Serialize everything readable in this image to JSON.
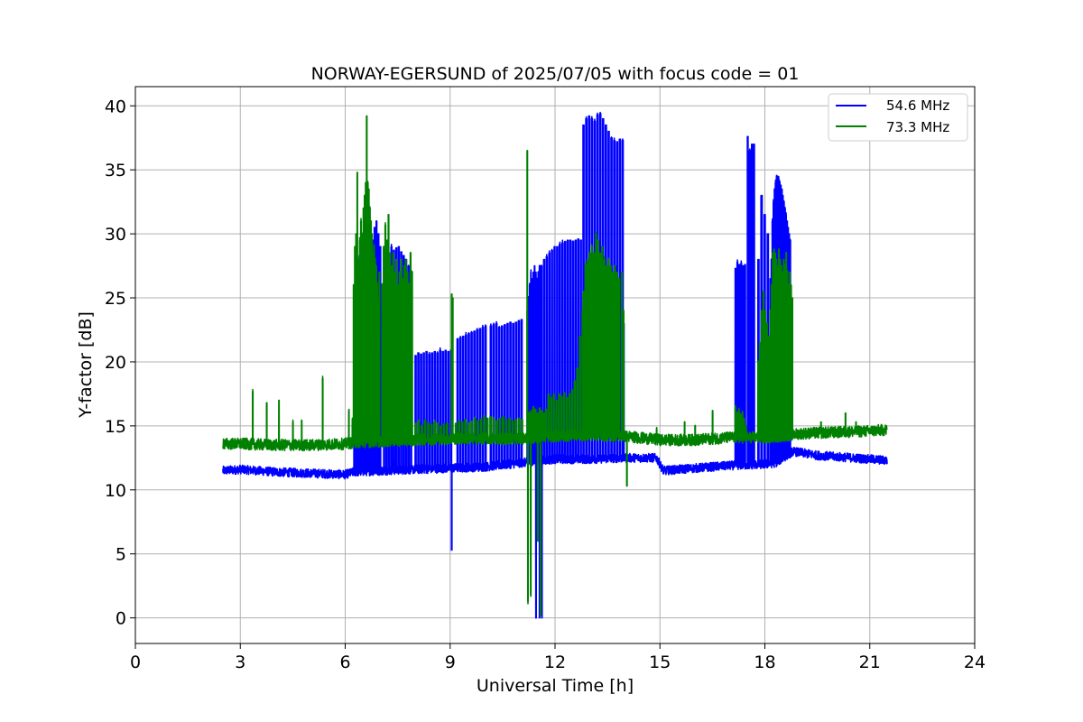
{
  "chart_data": {
    "type": "line",
    "title": "NORWAY-EGERSUND of 2025/07/05 with focus code = 01",
    "xlabel": "Universal Time [h]",
    "ylabel": "Y-factor [dB]",
    "xlim": [
      0,
      24
    ],
    "ylim": [
      -2,
      41.5
    ],
    "xticks": [
      0,
      3,
      6,
      9,
      12,
      15,
      18,
      21,
      24
    ],
    "yticks": [
      0,
      5,
      10,
      15,
      20,
      25,
      30,
      35,
      40
    ],
    "grid": true,
    "legend_position": "top-right",
    "series": [
      {
        "name": "54.6 MHz",
        "color": "#0000ff",
        "baseline": [
          [
            2.5,
            11.5
          ],
          [
            3.0,
            11.6
          ],
          [
            4.0,
            11.4
          ],
          [
            5.0,
            11.3
          ],
          [
            6.0,
            11.2
          ],
          [
            6.25,
            11.4
          ],
          [
            7.0,
            11.5
          ],
          [
            8.0,
            11.6
          ],
          [
            9.0,
            11.7
          ],
          [
            10.0,
            11.8
          ],
          [
            11.0,
            12.1
          ],
          [
            12.0,
            12.4
          ],
          [
            13.0,
            12.4
          ],
          [
            14.0,
            12.5
          ],
          [
            14.9,
            12.5
          ],
          [
            15.1,
            11.5
          ],
          [
            16.0,
            11.7
          ],
          [
            17.0,
            11.9
          ],
          [
            18.0,
            12.0
          ],
          [
            18.3,
            12.1
          ],
          [
            18.8,
            13.0
          ],
          [
            19.5,
            12.7
          ],
          [
            20.5,
            12.5
          ],
          [
            21.5,
            12.3
          ]
        ],
        "noise": 0.35,
        "spikes": [
          {
            "start": 6.25,
            "end": 6.5,
            "step": 0.05,
            "peaks": [
              21.5,
              28.0,
              27.0,
              28.3,
              27.5
            ]
          },
          {
            "start": 6.5,
            "end": 7.05,
            "step": 0.055,
            "peaks": [
              29.5,
              30.0,
              30.5,
              31.0,
              30.0,
              29.5,
              30.5,
              31.0,
              30.0,
              29.0
            ]
          },
          {
            "start": 7.1,
            "end": 7.95,
            "step": 0.07,
            "peaks": [
              28.8,
              29.0,
              28.5,
              29.0,
              28.7,
              28.9,
              29.0,
              28.6,
              28.3,
              28.0,
              27.5,
              27.0
            ]
          },
          {
            "start": 8.0,
            "end": 9.1,
            "step": 0.078,
            "peaks": [
              20.5,
              20.7,
              20.6,
              20.7,
              20.8,
              20.6,
              20.7,
              20.8,
              20.7,
              20.9,
              20.8,
              20.9,
              20.8,
              20.9
            ]
          },
          {
            "start": 9.2,
            "end": 10.1,
            "step": 0.08,
            "peaks": [
              21.8,
              21.9,
              22.0,
              22.1,
              22.2,
              22.3,
              22.4,
              22.5,
              22.6,
              22.7,
              22.8
            ]
          },
          {
            "start": 10.15,
            "end": 11.1,
            "step": 0.08,
            "peaks": [
              22.8,
              22.9,
              23.0,
              22.7,
              22.8,
              22.9,
              23.0,
              23.1,
              23.0,
              23.1,
              23.2,
              23.3
            ]
          },
          {
            "start": 11.2,
            "end": 11.6,
            "step": 0.035,
            "peaks": [
              24.0,
              25.0,
              26.0,
              27.0,
              26.5,
              27.0,
              27.5,
              27.0,
              26.5,
              27.0,
              27.5
            ]
          },
          {
            "start": 11.6,
            "end": 12.8,
            "step": 0.075,
            "peaks": [
              27.5,
              28.0,
              28.2,
              28.5,
              28.7,
              29.0,
              29.0,
              29.2,
              29.3,
              29.4,
              29.5,
              29.5,
              29.4,
              29.5,
              29.6,
              29.5
            ]
          },
          {
            "start": 12.8,
            "end": 13.95,
            "step": 0.08,
            "peaks": [
              38.5,
              39.0,
              39.2,
              39.0,
              38.8,
              39.3,
              39.4,
              39.0,
              38.5,
              38.0,
              37.5,
              37.3,
              37.2,
              37.4,
              37.3
            ]
          },
          {
            "start": 13.96,
            "end": 14.0,
            "step": 0.04,
            "peaks": [
              23.0
            ]
          },
          {
            "start": 17.15,
            "end": 17.5,
            "step": 0.055,
            "peaks": [
              27.3,
              27.8,
              27.6,
              27.7,
              27.5,
              27.6
            ]
          },
          {
            "start": 17.5,
            "end": 17.75,
            "step": 0.06,
            "peaks": [
              37.6,
              36.5,
              37.0,
              37.0
            ]
          },
          {
            "start": 17.8,
            "end": 18.15,
            "step": 0.09,
            "peaks": [
              28.0,
              33.0,
              31.5,
              30.0
            ]
          },
          {
            "start": 18.15,
            "end": 18.75,
            "step": 0.03,
            "peaks": [
              26.5,
              28.0,
              31.0,
              32.5,
              33.5,
              34.0,
              34.5,
              34.5,
              34.3,
              34.0,
              33.8,
              33.5,
              33.0,
              32.5,
              32.0,
              31.5,
              31.0,
              30.5,
              30.0,
              29.5
            ]
          }
        ],
        "dips": [
          {
            "x": 9.04,
            "y": 5.3
          },
          {
            "x": 11.45,
            "y": 0.0
          },
          {
            "x": 11.55,
            "y": 0.0
          },
          {
            "x": 11.62,
            "y": 0.0
          }
        ]
      },
      {
        "name": "73.3 MHz",
        "color": "#008000",
        "baseline": [
          [
            2.5,
            13.6
          ],
          [
            3.0,
            13.6
          ],
          [
            4.0,
            13.5
          ],
          [
            5.0,
            13.5
          ],
          [
            6.0,
            13.6
          ],
          [
            6.25,
            13.7
          ],
          [
            7.0,
            13.8
          ],
          [
            8.0,
            13.9
          ],
          [
            9.0,
            14.0
          ],
          [
            10.0,
            14.0
          ],
          [
            11.0,
            14.0
          ],
          [
            12.0,
            14.2
          ],
          [
            13.0,
            14.3
          ],
          [
            14.0,
            14.2
          ],
          [
            15.0,
            13.9
          ],
          [
            16.0,
            13.9
          ],
          [
            17.0,
            14.1
          ],
          [
            18.0,
            14.1
          ],
          [
            18.5,
            14.2
          ],
          [
            19.0,
            14.4
          ],
          [
            20.0,
            14.5
          ],
          [
            21.0,
            14.6
          ],
          [
            21.5,
            14.7
          ]
        ],
        "noise": 0.45,
        "spikes": [
          {
            "start": 6.2,
            "end": 6.55,
            "step": 0.035,
            "peaks": [
              15.5,
              26.0,
              29.0,
              30.0,
              34.8,
              28.0,
              29.5,
              31.0,
              30.0,
              32.0
            ]
          },
          {
            "start": 6.55,
            "end": 7.0,
            "step": 0.03,
            "peaks": [
              33.0,
              34.0,
              39.2,
              34.0,
              33.5,
              32.0,
              31.0,
              30.0,
              28.5,
              29.0,
              28.0,
              27.5,
              26.0,
              25.0,
              27.0
            ]
          },
          {
            "start": 7.05,
            "end": 7.95,
            "step": 0.045,
            "peaks": [
              26.0,
              29.0,
              30.7,
              29.5,
              31.5,
              28.5,
              27.5,
              28.5,
              27.0,
              28.0,
              26.0,
              27.0,
              28.0,
              26.5,
              27.5,
              28.0,
              27.0,
              26.0,
              28.5,
              27.0
            ]
          },
          {
            "start": 8.0,
            "end": 9.0,
            "step": 0.09,
            "peaks": [
              15.2,
              15.3,
              15.0,
              15.4,
              15.2,
              15.1,
              15.3,
              15.2,
              15.0,
              15.1,
              15.2
            ]
          },
          {
            "start": 9.04,
            "end": 9.1,
            "step": 0.03,
            "peaks": [
              25.3,
              25.0
            ]
          },
          {
            "start": 9.15,
            "end": 11.1,
            "step": 0.09,
            "peaks": [
              15.2,
              15.4,
              15.3,
              15.5,
              15.2,
              15.3,
              15.6,
              15.4,
              15.5,
              15.8,
              15.6,
              15.7,
              15.5,
              15.4,
              15.6,
              15.7,
              15.5,
              15.6,
              15.4,
              15.5,
              15.6,
              15.5
            ]
          },
          {
            "start": 11.2,
            "end": 11.22,
            "step": 0.02,
            "peaks": [
              36.5
            ]
          },
          {
            "start": 11.25,
            "end": 11.8,
            "step": 0.06,
            "peaks": [
              16.0,
              16.2,
              16.5,
              16.3,
              16.0,
              16.4,
              16.2,
              16.0,
              16.3
            ]
          },
          {
            "start": 11.8,
            "end": 12.8,
            "step": 0.075,
            "peaks": [
              17.5,
              17.2,
              17.4,
              17.0,
              17.5,
              17.3,
              17.6,
              17.2,
              17.5,
              17.8,
              18.5,
              19.5,
              22.0,
              24.0
            ]
          },
          {
            "start": 12.8,
            "end": 13.9,
            "step": 0.06,
            "peaks": [
              25.5,
              27.5,
              28.0,
              28.5,
              29.0,
              28.5,
              30.0,
              29.5,
              28.5,
              29.0,
              28.0,
              27.5,
              28.0,
              27.5,
              27.0,
              27.5,
              27.0,
              26.5
            ]
          },
          {
            "start": 13.9,
            "end": 14.0,
            "step": 0.05,
            "peaks": [
              27.0,
              24.0
            ]
          },
          {
            "start": 16.5,
            "end": 16.52,
            "step": 0.02,
            "peaks": [
              16.2
            ]
          },
          {
            "start": 17.15,
            "end": 17.5,
            "step": 0.05,
            "peaks": [
              16.5,
              16.0,
              16.2,
              15.8,
              16.0,
              15.5,
              15.0
            ]
          },
          {
            "start": 17.8,
            "end": 18.15,
            "step": 0.05,
            "peaks": [
              20.0,
              21.5,
              24.0,
              25.5,
              24.0,
              23.0,
              22.0
            ]
          },
          {
            "start": 18.15,
            "end": 18.8,
            "step": 0.035,
            "peaks": [
              24.0,
              26.0,
              28.5,
              28.8,
              28.5,
              28.0,
              27.5,
              28.8,
              28.0,
              27.5,
              27.0,
              28.0,
              27.5,
              28.5,
              27.0,
              26.0,
              27.0,
              26.0,
              25.0
            ]
          }
        ],
        "isolated": [
          {
            "x": 3.35,
            "y": 17.7
          },
          {
            "x": 3.75,
            "y": 16.8
          },
          {
            "x": 4.1,
            "y": 17.0
          },
          {
            "x": 4.5,
            "y": 15.3
          },
          {
            "x": 4.75,
            "y": 15.4
          },
          {
            "x": 5.35,
            "y": 18.7
          },
          {
            "x": 6.1,
            "y": 16.2
          },
          {
            "x": 14.9,
            "y": 14.8
          },
          {
            "x": 15.7,
            "y": 15.3
          },
          {
            "x": 16.0,
            "y": 15.0
          },
          {
            "x": 19.6,
            "y": 15.3
          },
          {
            "x": 20.3,
            "y": 16.0
          },
          {
            "x": 20.6,
            "y": 15.3
          }
        ],
        "dips": [
          {
            "x": 11.22,
            "y": 1.3
          },
          {
            "x": 11.3,
            "y": 1.8
          },
          {
            "x": 11.5,
            "y": 6.0
          },
          {
            "x": 11.58,
            "y": 0.2
          },
          {
            "x": 14.05,
            "y": 10.3
          }
        ]
      }
    ]
  }
}
